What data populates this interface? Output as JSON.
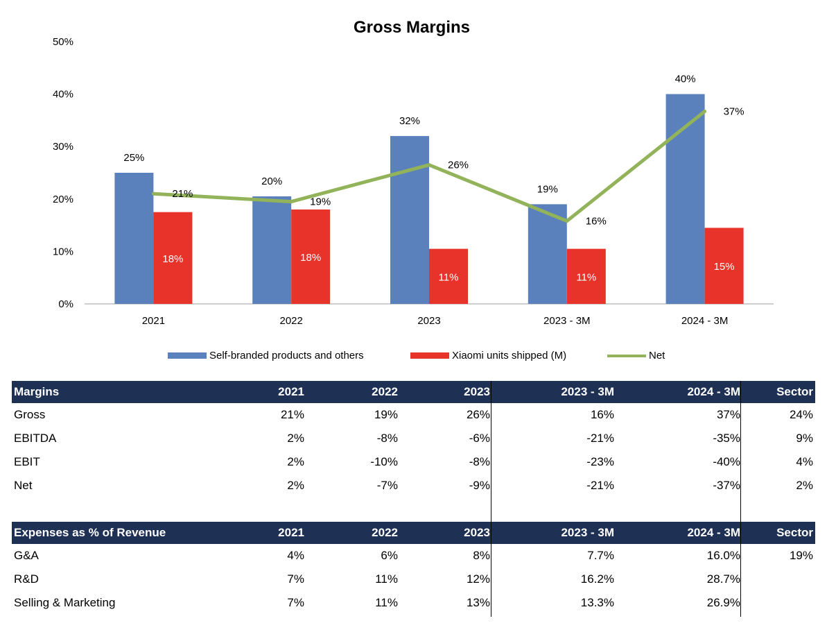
{
  "chart_data": {
    "type": "bar",
    "title": "Gross  Margins",
    "categories": [
      "2021",
      "2022",
      "2023",
      "2023 - 3M",
      "2024 - 3M"
    ],
    "ylim": [
      0,
      50
    ],
    "yticks": [
      "0%",
      "10%",
      "20%",
      "30%",
      "40%",
      "50%"
    ],
    "series": [
      {
        "name": "Self-branded products and others",
        "kind": "bar",
        "color": "#5a81bc",
        "values": [
          25,
          20.5,
          32,
          19,
          40
        ],
        "labels": [
          "25%",
          "20%",
          "32%",
          "19%",
          "40%"
        ]
      },
      {
        "name": "Xiaomi units shipped (M)",
        "kind": "bar",
        "color": "#e8332a",
        "values": [
          17.5,
          18,
          10.5,
          10.5,
          14.5
        ],
        "labels": [
          "18%",
          "18%",
          "11%",
          "11%",
          "15%"
        ]
      },
      {
        "name": "Net",
        "kind": "line",
        "color": "#92b35a",
        "values": [
          21,
          19.5,
          26.5,
          15.8,
          36.7
        ],
        "labels": [
          "21%",
          "19%",
          "26%",
          "16%",
          "37%"
        ]
      }
    ],
    "legend_position": "bottom",
    "grid": false
  },
  "margins_table": {
    "headers": [
      "Margins",
      "2021",
      "2022",
      "2023",
      "2023 - 3M",
      "2024 - 3M",
      "Sector"
    ],
    "rows": [
      [
        "Gross",
        "21%",
        "19%",
        "26%",
        "16%",
        "37%",
        "24%"
      ],
      [
        "EBITDA",
        "2%",
        "-8%",
        "-6%",
        "-21%",
        "-35%",
        "9%"
      ],
      [
        "EBIT",
        "2%",
        "-10%",
        "-8%",
        "-23%",
        "-40%",
        "4%"
      ],
      [
        "Net",
        "2%",
        "-7%",
        "-9%",
        "-21%",
        "-37%",
        "2%"
      ]
    ]
  },
  "expenses_table": {
    "headers": [
      "Expenses as % of Revenue",
      "2021",
      "2022",
      "2023",
      "2023 - 3M",
      "2024 - 3M",
      "Sector"
    ],
    "rows": [
      [
        "G&A",
        "4%",
        "6%",
        "8%",
        "7.7%",
        "16.0%",
        "19%"
      ],
      [
        "R&D",
        "7%",
        "11%",
        "12%",
        "16.2%",
        "28.7%",
        ""
      ],
      [
        "Selling & Marketing",
        "7%",
        "11%",
        "13%",
        "13.3%",
        "26.9%",
        ""
      ]
    ]
  }
}
